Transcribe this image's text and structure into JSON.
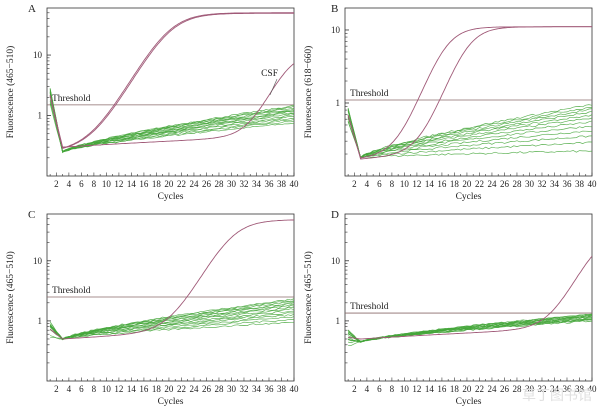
{
  "watermark": "草丁图书馆",
  "chart_data": [
    {
      "panel": "A",
      "type": "line",
      "ylabel": "Fluorescence (465−510)",
      "xlabel": "Cycles",
      "yscale": "log",
      "ylim": [
        0.1,
        60
      ],
      "yticks": [
        "1",
        "10"
      ],
      "xticks": [
        "2",
        "4",
        "6",
        "8",
        "10",
        "12",
        "14",
        "16",
        "18",
        "20",
        "22",
        "24",
        "26",
        "28",
        "30",
        "32",
        "34",
        "36",
        "38",
        "40"
      ],
      "xlim": [
        0.5,
        40
      ],
      "threshold": {
        "label": "Threshold",
        "value": 1.5
      },
      "annotation": "CSF",
      "colors": {
        "amplified": "#a05a78",
        "baseline": "#44a63a",
        "threshold": "#8a6a6a"
      },
      "amplified": [
        {
          "base": 0.25,
          "plateau": 50,
          "midpoint": 20,
          "steep": 0.42
        },
        {
          "base": 0.25,
          "plateau": 49,
          "midpoint": 20.2,
          "steep": 0.42
        },
        {
          "base": 0.3,
          "plateau": 11,
          "midpoint": 39,
          "steep": 0.55
        }
      ],
      "baseline_n": 14,
      "baseline_start": 0.25,
      "baseline_end_range": [
        0.75,
        1.45
      ],
      "early_peak": 2.2
    },
    {
      "panel": "B",
      "type": "line",
      "ylabel": "Fluorescence (618−660)",
      "xlabel": "Cycles",
      "yscale": "log",
      "ylim": [
        0.1,
        20
      ],
      "yticks": [
        "1",
        "10"
      ],
      "xticks": [
        "2",
        "4",
        "6",
        "8",
        "10",
        "12",
        "14",
        "16",
        "18",
        "20",
        "22",
        "24",
        "26",
        "28",
        "30",
        "32",
        "34",
        "36",
        "38",
        "40"
      ],
      "xlim": [
        0.5,
        40
      ],
      "threshold": {
        "label": "Threshold",
        "value": 1.1
      },
      "colors": {
        "amplified": "#a05a78",
        "baseline": "#44a63a",
        "threshold": "#8a6a6a"
      },
      "amplified": [
        {
          "base": 0.17,
          "plateau": 11,
          "midpoint": 16.5,
          "steep": 0.55
        },
        {
          "base": 0.17,
          "plateau": 11,
          "midpoint": 20,
          "steep": 0.55
        }
      ],
      "baseline_n": 12,
      "baseline_start": 0.18,
      "baseline_end_range": [
        0.22,
        0.95
      ],
      "early_peak": 0.7
    },
    {
      "panel": "C",
      "type": "line",
      "ylabel": "Fluorescence (465−510)",
      "xlabel": "Cycles",
      "yscale": "log",
      "ylim": [
        0.1,
        60
      ],
      "yticks": [
        "1",
        "10"
      ],
      "xticks": [
        "2",
        "4",
        "6",
        "8",
        "10",
        "12",
        "14",
        "16",
        "18",
        "20",
        "22",
        "24",
        "26",
        "28",
        "30",
        "32",
        "34",
        "36",
        "38",
        "40"
      ],
      "xlim": [
        0.5,
        40
      ],
      "threshold": {
        "label": "Threshold",
        "value": 2.5
      },
      "colors": {
        "amplified": "#a05a78",
        "baseline": "#44a63a",
        "threshold": "#8a6a6a"
      },
      "amplified": [
        {
          "base": 0.5,
          "plateau": 48,
          "midpoint": 30,
          "steep": 0.45
        }
      ],
      "baseline_n": 14,
      "baseline_start": 0.5,
      "baseline_end_range": [
        0.95,
        2.3
      ],
      "early_peak": 0.75
    },
    {
      "panel": "D",
      "type": "line",
      "ylabel": "Fluorescence (465−510)",
      "xlabel": "Cycles",
      "yscale": "log",
      "ylim": [
        0.1,
        60
      ],
      "yticks": [
        "1",
        "10"
      ],
      "xticks": [
        "2",
        "4",
        "6",
        "8",
        "10",
        "12",
        "14",
        "16",
        "18",
        "20",
        "22",
        "24",
        "26",
        "28",
        "30",
        "32",
        "34",
        "36",
        "38",
        "40"
      ],
      "xlim": [
        0.5,
        40
      ],
      "threshold": {
        "label": "Threshold",
        "value": 1.35
      },
      "colors": {
        "amplified": "#a05a78",
        "baseline": "#44a63a",
        "threshold": "#8a6a6a"
      },
      "amplified": [
        {
          "base": 0.5,
          "plateau": 30,
          "midpoint": 41,
          "steep": 0.5
        }
      ],
      "baseline_n": 14,
      "baseline_start": 0.45,
      "baseline_end_range": [
        1.0,
        1.3
      ],
      "early_peak": 0.55
    }
  ]
}
